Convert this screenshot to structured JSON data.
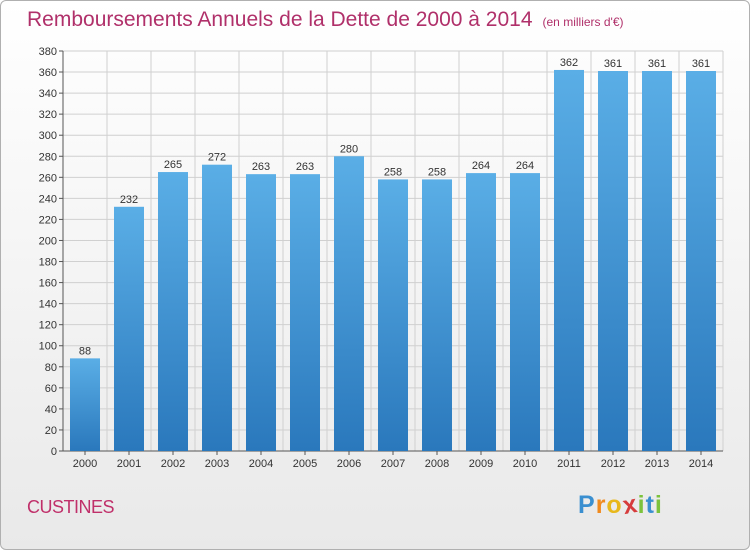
{
  "chart_data": {
    "type": "bar",
    "title": "Remboursements Annuels de la Dette de 2000 à 2014",
    "subtitle": "(en milliers d'€)",
    "categories": [
      "2000",
      "2001",
      "2002",
      "2003",
      "2004",
      "2005",
      "2006",
      "2007",
      "2008",
      "2009",
      "2010",
      "2011",
      "2012",
      "2013",
      "2014"
    ],
    "values": [
      88,
      232,
      265,
      272,
      263,
      263,
      280,
      258,
      258,
      264,
      264,
      362,
      361,
      361,
      361
    ],
    "ylim": [
      0,
      380
    ],
    "yticks": [
      0,
      20,
      40,
      60,
      80,
      100,
      120,
      140,
      160,
      180,
      200,
      220,
      240,
      260,
      280,
      300,
      320,
      340,
      360,
      380
    ],
    "grid": true,
    "bar_color": "#3d8fd6"
  },
  "footer": {
    "commune": "CUSTINES",
    "logo_letters": [
      {
        "ch": "P",
        "color": "#3a8fd0"
      },
      {
        "ch": "r",
        "color": "#f08a1e"
      },
      {
        "ch": "o",
        "color": "#e8b81c"
      },
      {
        "ch": "x",
        "color": "#d63c3c"
      },
      {
        "ch": "i",
        "color": "#7cc23c"
      },
      {
        "ch": "t",
        "color": "#3a8fd0"
      },
      {
        "ch": "i",
        "color": "#7cc23c"
      }
    ]
  }
}
